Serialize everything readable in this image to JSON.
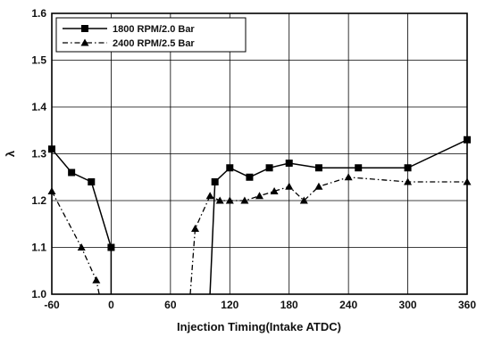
{
  "chart_data": {
    "type": "line",
    "xlabel": "Injection Timing(Intake ATDC)",
    "ylabel": "λ",
    "xlim": [
      -60,
      360
    ],
    "ylim": [
      1.0,
      1.6
    ],
    "xticks": [
      -60,
      0,
      60,
      120,
      180,
      240,
      300,
      360
    ],
    "yticks": [
      1.0,
      1.1,
      1.2,
      1.3,
      1.4,
      1.5,
      1.6
    ],
    "xtick_labels": [
      "-60",
      "0",
      "60",
      "120",
      "180",
      "240",
      "300",
      "360"
    ],
    "ytick_labels": [
      "1.0",
      "1.1",
      "1.2",
      "1.3",
      "1.4",
      "1.5",
      "1.6"
    ],
    "grid": true,
    "legend_position": "top-left",
    "series": [
      {
        "name": "1800 RPM/2.0 Bar",
        "marker": "square",
        "line_style": "solid",
        "color": "#000000",
        "segments": [
          [
            [
              -60,
              1.31
            ],
            [
              -40,
              1.26
            ],
            [
              -20,
              1.24
            ],
            [
              0,
              1.1
            ],
            [
              0,
              1.0
            ]
          ],
          [
            [
              100,
              1.0
            ],
            [
              105,
              1.24
            ],
            [
              120,
              1.27
            ],
            [
              140,
              1.25
            ],
            [
              160,
              1.27
            ],
            [
              180,
              1.28
            ],
            [
              210,
              1.27
            ],
            [
              250,
              1.27
            ],
            [
              300,
              1.27
            ],
            [
              360,
              1.33
            ]
          ]
        ]
      },
      {
        "name": "2400 RPM/2.5 Bar",
        "marker": "triangle",
        "line_style": "dashdot",
        "color": "#000000",
        "segments": [
          [
            [
              -60,
              1.22
            ],
            [
              -30,
              1.1
            ],
            [
              -15,
              1.03
            ],
            [
              -12,
              1.0
            ]
          ],
          [
            [
              80,
              1.0
            ],
            [
              85,
              1.14
            ],
            [
              100,
              1.21
            ],
            [
              110,
              1.2
            ],
            [
              120,
              1.2
            ],
            [
              135,
              1.2
            ],
            [
              150,
              1.21
            ],
            [
              165,
              1.22
            ],
            [
              180,
              1.23
            ],
            [
              195,
              1.2
            ],
            [
              210,
              1.23
            ],
            [
              240,
              1.25
            ],
            [
              300,
              1.24
            ],
            [
              360,
              1.24
            ]
          ]
        ]
      }
    ]
  }
}
